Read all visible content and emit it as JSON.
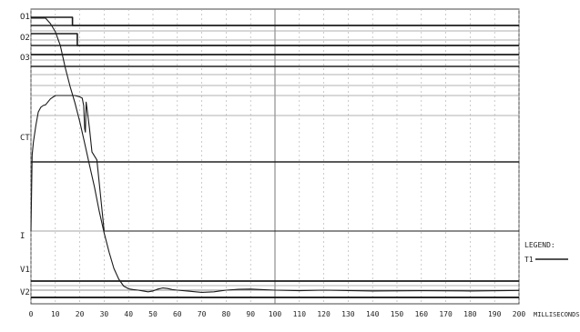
{
  "chart_data": {
    "type": "line",
    "title": "",
    "xlabel": "MILLISECONDS",
    "ylabel": "",
    "xlim": [
      0,
      200
    ],
    "x_ticks": [
      0,
      10,
      20,
      30,
      40,
      50,
      60,
      70,
      80,
      90,
      100,
      110,
      120,
      130,
      140,
      150,
      160,
      170,
      180,
      190,
      200
    ],
    "grid": true,
    "channels": [
      "O1",
      "O2",
      "O3",
      "CT",
      "I",
      "V1",
      "V2"
    ],
    "legend": {
      "title": "LEGEND:",
      "entries": [
        "T1"
      ],
      "placement": "right"
    },
    "series": [
      {
        "name": "O1",
        "kind": "digital",
        "x": [
          0,
          17,
          17,
          200
        ],
        "y": [
          1,
          1,
          0,
          0
        ]
      },
      {
        "name": "O2",
        "kind": "digital",
        "x": [
          0,
          19,
          19,
          200
        ],
        "y": [
          1,
          1,
          0,
          0
        ]
      },
      {
        "name": "O3",
        "kind": "digital",
        "x": [
          0,
          200
        ],
        "y": [
          1,
          1
        ]
      },
      {
        "name": "CT",
        "kind": "analog",
        "x": [
          0,
          0.5,
          1,
          2,
          3,
          4,
          5,
          6,
          8,
          10,
          12,
          14,
          16,
          18,
          20,
          21,
          21.6,
          22,
          22.3,
          22.6,
          23,
          24,
          25,
          27,
          30,
          200
        ],
        "y": [
          0,
          0.1,
          0.3,
          0.55,
          0.75,
          0.82,
          0.85,
          0.86,
          0.95,
          1.0,
          1.0,
          1.0,
          1.0,
          1.0,
          0.98,
          0.96,
          0.85,
          0.5,
          0.45,
          0.9,
          0.8,
          0.5,
          0.15,
          0.03,
          0,
          0
        ]
      },
      {
        "name": "I",
        "kind": "analog",
        "x": [
          0,
          2,
          4,
          6,
          8,
          10,
          12,
          14,
          16,
          18,
          20,
          22,
          24,
          26,
          28,
          30,
          32,
          34,
          36,
          38,
          40,
          42,
          44,
          46,
          48,
          50,
          52,
          54,
          56,
          58,
          60,
          65,
          70,
          75,
          80,
          85,
          90,
          95,
          100,
          110,
          120,
          140,
          160,
          180,
          200
        ],
        "y": [
          1,
          1,
          1,
          1,
          0.98,
          0.95,
          0.9,
          0.82,
          0.75,
          0.69,
          0.62,
          0.54,
          0.46,
          0.38,
          0.29,
          0.21,
          0.14,
          0.08,
          0.04,
          0.015,
          0.005,
          0.002,
          0.0,
          -0.003,
          -0.006,
          -0.003,
          0.004,
          0.008,
          0.006,
          0.002,
          0.0,
          -0.004,
          -0.008,
          -0.006,
          0.0,
          0.003,
          0.004,
          0.002,
          0.0,
          -0.002,
          0.0,
          -0.003,
          -0.002,
          -0.003,
          -0.001
        ]
      },
      {
        "name": "V1",
        "kind": "digital",
        "x": [
          0,
          200
        ],
        "y": [
          0,
          0
        ]
      },
      {
        "name": "V2",
        "kind": "digital",
        "x": [
          0,
          200
        ],
        "y": [
          0,
          0
        ]
      }
    ]
  }
}
